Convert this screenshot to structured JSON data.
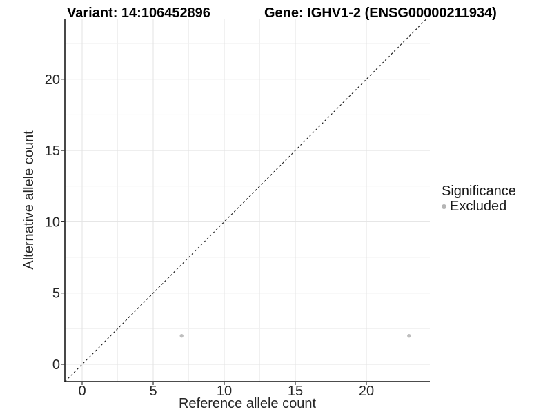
{
  "header": {
    "title_left": "Variant: 14:106452896",
    "title_right": "Gene: IGHV1-2 (ENSG00000211934)"
  },
  "chart_data": {
    "type": "scatter",
    "title_left": "Variant: 14:106452896",
    "title_right": "Gene: IGHV1-2 (ENSG00000211934)",
    "xlabel": "Reference allele count",
    "ylabel": "Alternative allele count",
    "xlim": [
      -1.214,
      24.466
    ],
    "ylim": [
      -1.21,
      24.2
    ],
    "x_ticks": [
      0,
      5,
      10,
      15,
      20
    ],
    "y_ticks": [
      0,
      5,
      10,
      15,
      20
    ],
    "x_minor": [
      2.5,
      7.5,
      12.5,
      17.5,
      22.5
    ],
    "y_minor": [
      2.5,
      7.5,
      12.5,
      17.5,
      22.5
    ],
    "grid": true,
    "identity_line": {
      "slope": 1,
      "intercept": 0,
      "style": "dashed",
      "color": "#1a1a1a"
    },
    "series": [
      {
        "name": "Excluded",
        "color": "#bebebe",
        "points": [
          {
            "x": 7,
            "y": 2
          },
          {
            "x": 23,
            "y": 2
          }
        ]
      }
    ],
    "legend": {
      "title": "Significance",
      "position": "right",
      "items": [
        {
          "label": "Excluded",
          "color": "#b5b5b5"
        }
      ]
    },
    "colors": {
      "grid_major": "#e3e3e3",
      "grid_minor": "#f0f0f0",
      "axis_line": "#333333",
      "tick_text": "#262626",
      "point": "#bebebe"
    }
  }
}
